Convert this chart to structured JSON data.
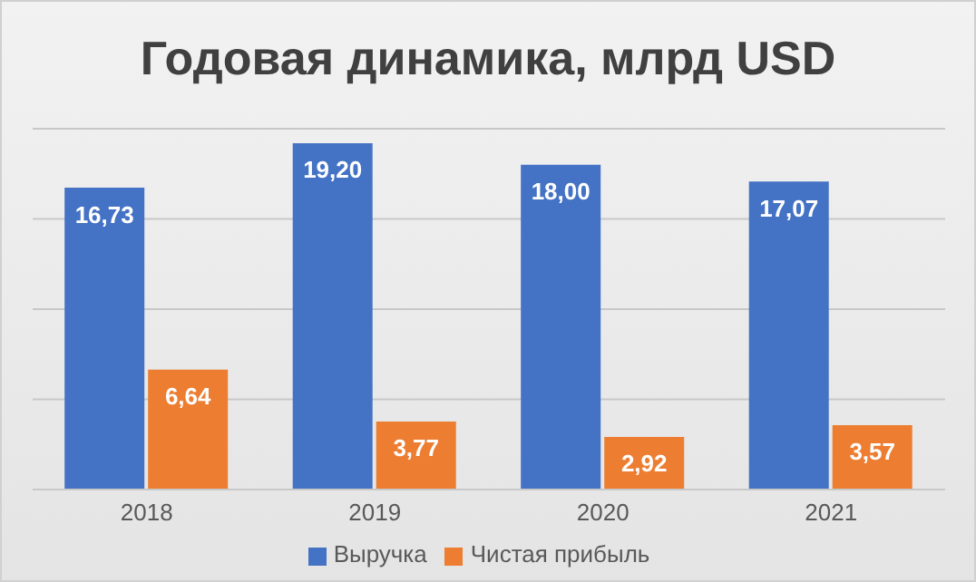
{
  "chart_data": {
    "type": "bar",
    "title": "Годовая динамика, млрд USD",
    "categories": [
      "2018",
      "2019",
      "2020",
      "2021"
    ],
    "series": [
      {
        "name": "Выручка",
        "color": "#4472c4",
        "values": [
          16.73,
          19.2,
          18.0,
          17.07
        ],
        "value_labels": [
          "16,73",
          "19,20",
          "18,00",
          "17,07"
        ]
      },
      {
        "name": "Чистая прибыль",
        "color": "#ed7d31",
        "values": [
          6.64,
          3.77,
          2.92,
          3.57
        ],
        "value_labels": [
          "6,64",
          "3,77",
          "2,92",
          "3,57"
        ]
      }
    ],
    "grid": "y",
    "legend": "bottom",
    "tick_labels": "x"
  }
}
